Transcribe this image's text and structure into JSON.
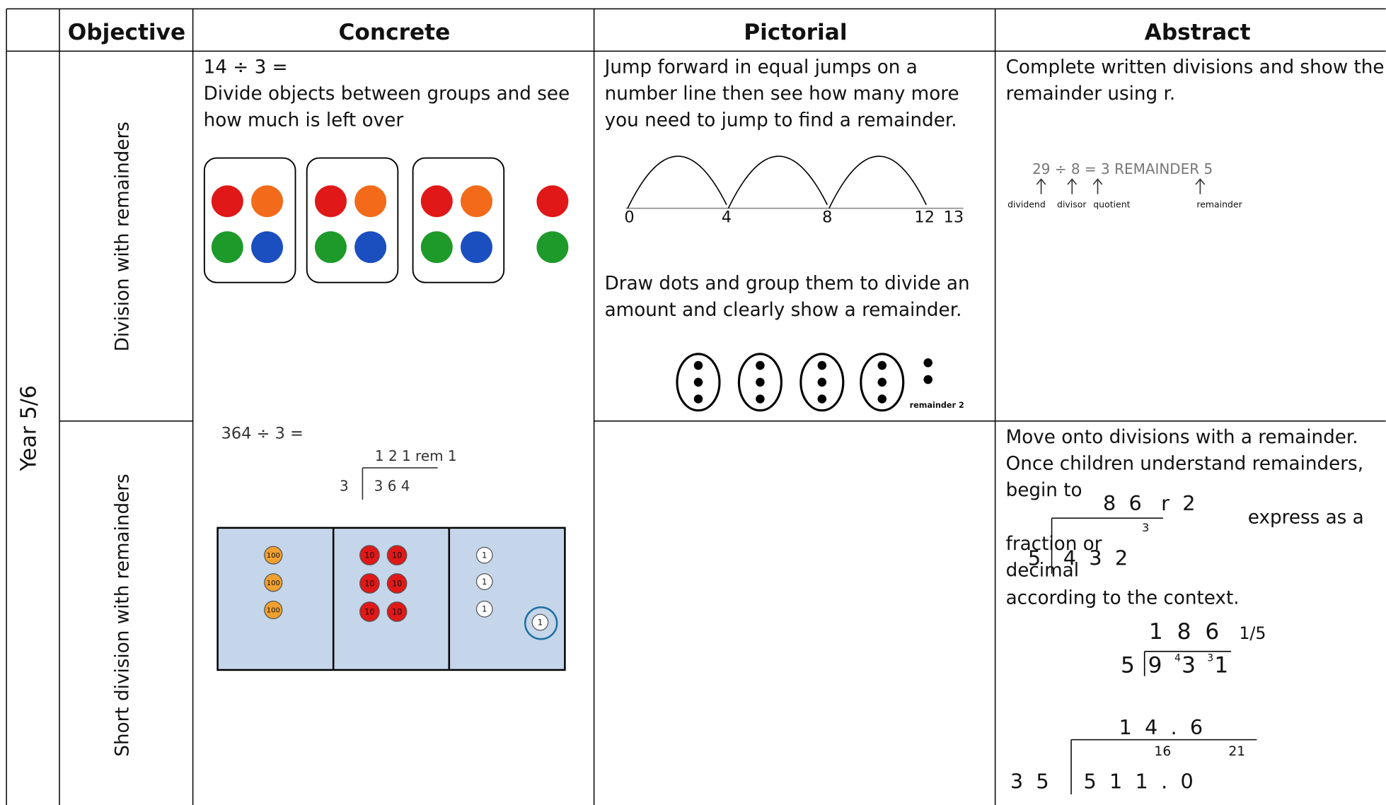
{
  "table": {
    "header": [
      "Objective",
      "Concrete",
      "Pictorial",
      "Abstract"
    ],
    "year": "Year 5/6",
    "rows": [
      {
        "objective": "Division with remainders",
        "concrete": {
          "lines": [
            "14 ÷ 3 =",
            "Divide objects between groups and see",
            "how much is left over"
          ]
        },
        "pictorial": {
          "lines": [
            "Jump forward in equal jumps on a",
            "number line then see how many more",
            "you need to jump to find a remainder."
          ],
          "number_line": [
            "0",
            "4",
            "8",
            "12",
            "13"
          ],
          "lines2": [
            "Draw dots and group them to divide an",
            "amount and clearly show a remainder."
          ],
          "dots_label": "remainder 2"
        },
        "abstract": {
          "lines": [
            "Complete written divisions and show the",
            "remainder using r."
          ],
          "equation": "29 ÷ 8 = 3 REMAINDER 5",
          "labels": [
            "dividend",
            "divisor",
            "quotient",
            "remainder"
          ]
        }
      },
      {
        "objective": "Short division with remainders",
        "concrete": {
          "question": "364 ÷ 3 =",
          "answer": "1 2 1  rem 1",
          "divisor": "3",
          "dividend": "3 6 4",
          "counters": [
            "100",
            "10",
            "1"
          ]
        },
        "abstract": {
          "lines": [
            "Move onto divisions with a remainder.",
            "Once children understand remainders,",
            "begin to"
          ],
          "express": "express as a",
          "fraction": "fraction or",
          "decimal": "decimal",
          "context": "according to the context.",
          "ex1": {
            "answer": "8  6   r  2",
            "carry": "3",
            "divisor": "5",
            "dividend": "4  3  2"
          },
          "ex2": {
            "answer": "1  8  6",
            "fraction": "1/5",
            "divisor": "5",
            "digits": [
              "9",
              "4",
              "3",
              "3",
              "1"
            ]
          },
          "ex3": {
            "answer": "1  4  .  6",
            "carries": [
              "16",
              "21"
            ],
            "divisor": "3  5",
            "dividend": "5  1  1  .  0"
          }
        }
      }
    ]
  }
}
